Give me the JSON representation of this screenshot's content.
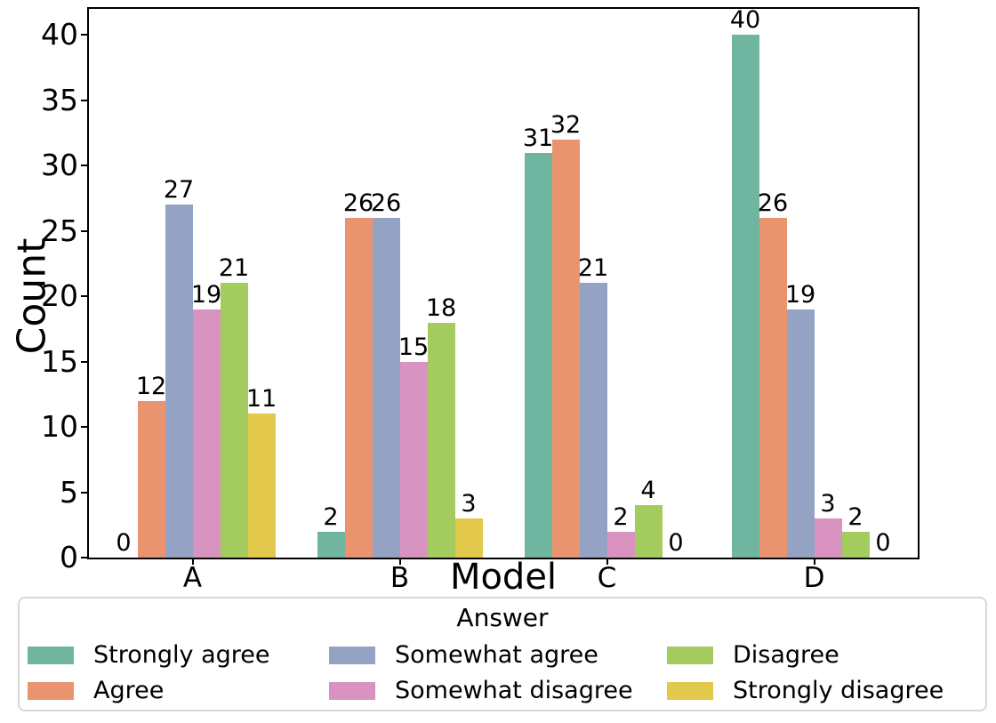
{
  "chart_data": {
    "type": "bar",
    "title": "",
    "xlabel": "Model",
    "ylabel": "Count",
    "categories": [
      "A",
      "B",
      "C",
      "D"
    ],
    "series": [
      {
        "name": "Strongly agree",
        "color": "#70b5a0",
        "values": [
          0,
          2,
          31,
          40
        ]
      },
      {
        "name": "Agree",
        "color": "#e9946f",
        "values": [
          12,
          26,
          32,
          26
        ]
      },
      {
        "name": "Somewhat agree",
        "color": "#94a3c4",
        "values": [
          27,
          26,
          21,
          19
        ]
      },
      {
        "name": "Somewhat disagree",
        "color": "#d993c1",
        "values": [
          19,
          15,
          2,
          3
        ]
      },
      {
        "name": "Disagree",
        "color": "#a4cb5e",
        "values": [
          21,
          18,
          4,
          2
        ]
      },
      {
        "name": "Strongly disagree",
        "color": "#e2c84b",
        "values": [
          11,
          3,
          0,
          0
        ]
      }
    ],
    "yticks": [
      0,
      5,
      10,
      15,
      20,
      25,
      30,
      35,
      40
    ],
    "ylim": [
      0,
      42
    ],
    "bar_value_labels": true,
    "grid": false,
    "legend": {
      "title": "Answer",
      "position": "bottom",
      "columns": 3,
      "order": "column-major"
    },
    "axis_color": "#000000",
    "background_color": "#ffffff"
  }
}
